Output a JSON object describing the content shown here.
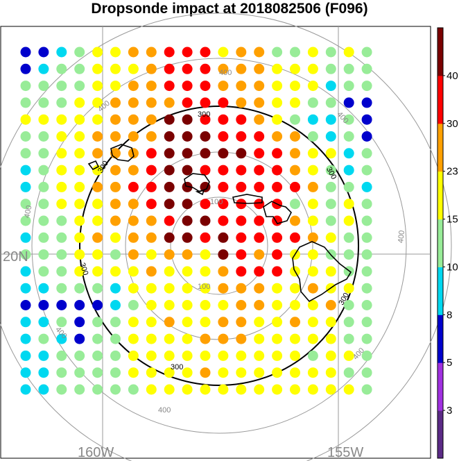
{
  "title": "Dropsonde impact at 2018082506 (F096)",
  "map": {
    "lat_labels": [
      "20N"
    ],
    "lon_labels": [
      "160W",
      "155W"
    ],
    "range_ring_labels": [
      "100",
      "300",
      "400"
    ],
    "bold_ring_label": "300"
  },
  "colorbar": {
    "tick_labels": [
      "40",
      "30",
      "23",
      "15",
      "10",
      "8",
      "5",
      "3"
    ],
    "colors": [
      "#5b2a86",
      "#a030e0",
      "#0000cc",
      "#00d8f0",
      "#98ec98",
      "#ffff00",
      "#ffa000",
      "#ff0000",
      "#7a0000"
    ]
  },
  "grid": {
    "rows": [
      "bbcgyyoorrryooggygyg",
      "bcggyyyorrroooyyyggg",
      "ggggyyoorrroooyyycgg",
      "gggyyoooorrrooyyggbb",
      "yyyyyoooRRrrroygccgb",
      "ggyyooooRRRrrroogcgb",
      "ggyyooorRRRRRrroyycg",
      "cgyyyoorRRrrrrroygcg",
      "cgyyoorrRRRrrrrroggc",
      "ggyyyoorRRrrrrrgygyg",
      "gggyyooorRRrrrroygyg",
      "cggyoyooRRrRrrrroygg",
      "gggyygoyooyRroryyggg",
      "cggyyyyoyyyorrryyygg",
      "ccgggcyyyyyoooyyoyyg",
      "bbbbbcgyyyyyooyyyogg",
      "ccgbggyyoyyooyyoyygg",
      "cgcbggyyyyoooyyyyygg",
      "ccggggyyyyyyyyyygyyg",
      "ccggggyyyyoyyyyyyygg",
      "ccgggggyyyyyyyyyyyyg"
    ]
  }
}
